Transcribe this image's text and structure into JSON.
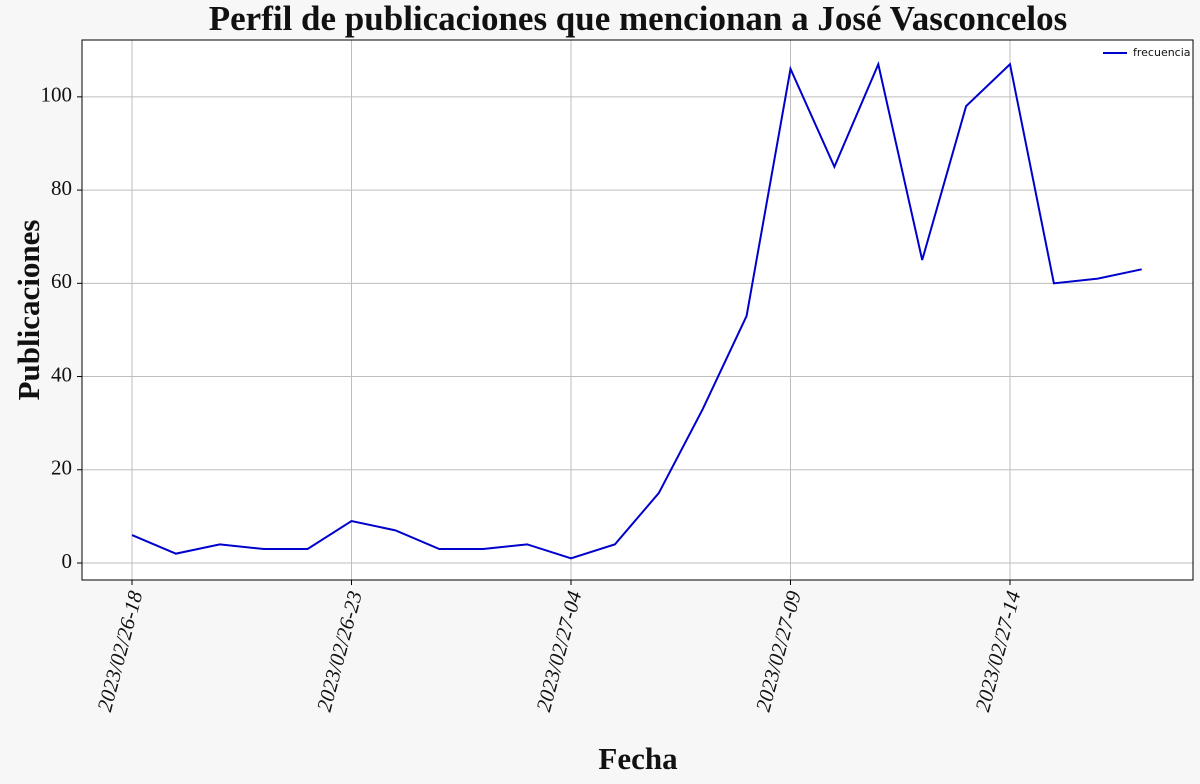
{
  "chart_data": {
    "type": "line",
    "title": "Perfil de publicaciones que mencionan a José Vasconcelos",
    "x_label": "Fecha",
    "y_label": "Publicaciones",
    "categories": [
      "2023/02/26-18",
      null,
      null,
      null,
      null,
      "2023/02/26-23",
      null,
      null,
      null,
      null,
      "2023/02/27-04",
      null,
      null,
      null,
      null,
      "2023/02/27-09",
      null,
      null,
      null,
      null,
      "2023/02/27-14",
      null,
      null,
      null
    ],
    "series": [
      {
        "name": "frecuencia",
        "color": "#0000cd",
        "values": [
          6,
          2,
          4,
          3,
          3,
          9,
          7,
          3,
          3,
          4,
          1,
          4,
          15,
          33,
          53,
          106,
          85,
          107,
          65,
          98,
          107,
          60,
          61,
          63
        ]
      }
    ],
    "ylim": [
      -3.65,
      112.2
    ],
    "yticks": [
      0,
      20,
      40,
      60,
      80,
      100
    ],
    "grid": true,
    "legend": "upper right"
  }
}
